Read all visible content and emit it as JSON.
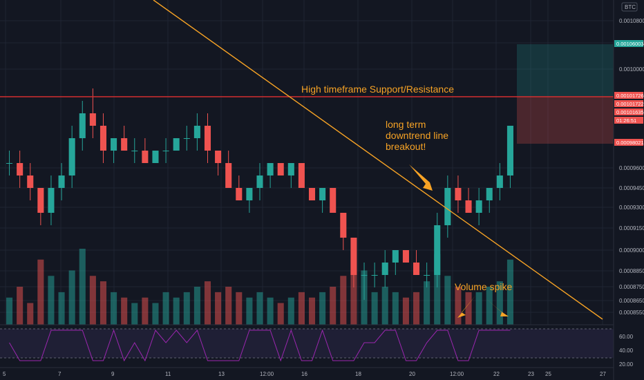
{
  "chart_data": {
    "type": "candlestick",
    "symbol_currency": "BTC",
    "y_ticks": [
      "0.00108000",
      "0.00104000",
      "0.00100000",
      "0.00096000",
      "0.00094500",
      "0.00093000",
      "0.00091500",
      "0.00090000",
      "0.00088500",
      "0.00087500",
      "0.00086500",
      "0.00085500"
    ],
    "x_ticks": [
      "5",
      "7",
      "9",
      "11",
      "13",
      "12:00",
      "16",
      "18",
      "20",
      "12:00",
      "22",
      "23",
      "25",
      "27"
    ],
    "price_tags": [
      {
        "label": "0.00106003",
        "color": "#26a69a"
      },
      {
        "label": "0.00101726",
        "color": "#ef5350"
      },
      {
        "label": "0.00101722",
        "color": "#ef5350"
      },
      {
        "label": "0.00101635",
        "color": "#ef5350"
      },
      {
        "label": "01:26:51",
        "color": "#ef5350"
      },
      {
        "label": "0.00098021",
        "color": "#ef5350"
      }
    ],
    "rsi_ticks": [
      "60.00",
      "40.00",
      "20.00"
    ],
    "annotations": {
      "resistance": "High timeframe Support/Resistance",
      "trendline_l1": "long term",
      "trendline_l2": "downtrend line",
      "trendline_l3": "breakout!",
      "volume": "Volume spike"
    },
    "colors": {
      "up": "#26a69a",
      "down": "#ef5350",
      "trend": "#f7a325",
      "resistance": "#d32f2f",
      "rsi": "#9c27b0",
      "bg": "#131722"
    },
    "candles": [
      [
        0.00098,
        0.00099,
        0.00097,
        0.00098,
        5
      ],
      [
        0.00098,
        0.00099,
        0.00096,
        0.00097,
        7
      ],
      [
        0.00097,
        0.00098,
        0.00095,
        0.00096,
        4
      ],
      [
        0.00096,
        0.00096,
        0.00093,
        0.00094,
        12
      ],
      [
        0.00094,
        0.00097,
        0.00093,
        0.00096,
        9
      ],
      [
        0.00096,
        0.00098,
        0.00095,
        0.00097,
        6
      ],
      [
        0.00097,
        0.00101,
        0.00096,
        0.001,
        10
      ],
      [
        0.001,
        0.00103,
        0.00099,
        0.00102,
        14
      ],
      [
        0.00102,
        0.00104,
        0.001,
        0.00101,
        9
      ],
      [
        0.00101,
        0.00102,
        0.00098,
        0.00099,
        8
      ],
      [
        0.00099,
        0.001,
        0.00098,
        0.001,
        6
      ],
      [
        0.001,
        0.00101,
        0.00099,
        0.00099,
        5
      ],
      [
        0.00099,
        0.001,
        0.00098,
        0.00099,
        4
      ],
      [
        0.00099,
        0.001,
        0.00098,
        0.00098,
        5
      ],
      [
        0.00098,
        0.00099,
        0.00098,
        0.00099,
        4
      ],
      [
        0.00099,
        0.001,
        0.00098,
        0.00099,
        6
      ],
      [
        0.00099,
        0.001,
        0.00099,
        0.001,
        5
      ],
      [
        0.001,
        0.00101,
        0.00099,
        0.001,
        6
      ],
      [
        0.001,
        0.00102,
        0.00099,
        0.00101,
        7
      ],
      [
        0.00101,
        0.00102,
        0.00098,
        0.00099,
        8
      ],
      [
        0.00099,
        0.00099,
        0.00097,
        0.00098,
        6
      ],
      [
        0.00098,
        0.00099,
        0.00096,
        0.00096,
        7
      ],
      [
        0.00096,
        0.00097,
        0.00095,
        0.00095,
        6
      ],
      [
        0.00095,
        0.00096,
        0.00094,
        0.00096,
        5
      ],
      [
        0.00096,
        0.00098,
        0.00095,
        0.00097,
        6
      ],
      [
        0.00097,
        0.00098,
        0.00096,
        0.00098,
        5
      ],
      [
        0.00098,
        0.00098,
        0.00097,
        0.00097,
        4
      ],
      [
        0.00097,
        0.00098,
        0.00096,
        0.00098,
        5
      ],
      [
        0.00098,
        0.00098,
        0.00096,
        0.00096,
        6
      ],
      [
        0.00096,
        0.00096,
        0.00095,
        0.00095,
        5
      ],
      [
        0.00095,
        0.00096,
        0.00094,
        0.00096,
        6
      ],
      [
        0.00096,
        0.00096,
        0.00094,
        0.00094,
        7
      ],
      [
        0.00094,
        0.00094,
        0.00091,
        0.00092,
        9
      ],
      [
        0.00092,
        0.00092,
        0.00088,
        0.00089,
        12
      ],
      [
        0.00089,
        0.0009,
        0.00087,
        0.00089,
        10
      ],
      [
        0.00089,
        0.0009,
        0.00088,
        0.00089,
        6
      ],
      [
        0.00089,
        0.00091,
        0.00088,
        0.0009,
        7
      ],
      [
        0.0009,
        0.00091,
        0.00089,
        0.00091,
        6
      ],
      [
        0.00091,
        0.00091,
        0.0009,
        0.0009,
        5
      ],
      [
        0.0009,
        0.00091,
        0.00089,
        0.00089,
        6
      ],
      [
        0.00089,
        0.0009,
        0.00088,
        0.00089,
        8
      ],
      [
        0.00089,
        0.00094,
        0.00088,
        0.00093,
        13
      ],
      [
        0.00093,
        0.00097,
        0.00092,
        0.00096,
        9
      ],
      [
        0.00096,
        0.00097,
        0.00094,
        0.00095,
        7
      ],
      [
        0.00095,
        0.00096,
        0.00094,
        0.00094,
        6
      ],
      [
        0.00094,
        0.00096,
        0.00093,
        0.00095,
        6
      ],
      [
        0.00095,
        0.00096,
        0.00094,
        0.00096,
        7
      ],
      [
        0.00096,
        0.00098,
        0.00095,
        0.00097,
        8
      ],
      [
        0.00097,
        0.00101,
        0.00096,
        0.00101,
        12
      ]
    ],
    "ylim": [
      0.00085,
      0.0011
    ]
  }
}
